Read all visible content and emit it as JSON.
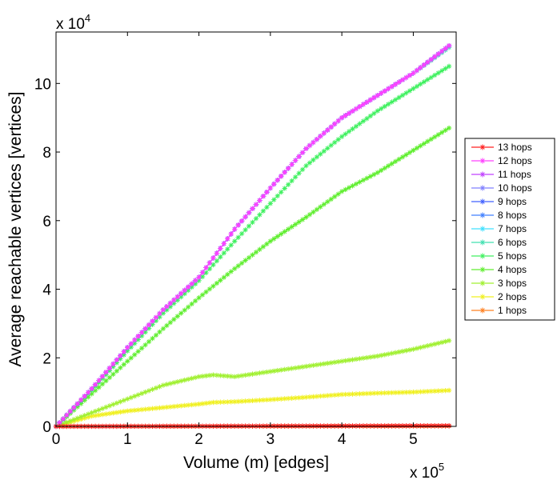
{
  "chart_data": {
    "type": "line",
    "xlabel": "Volume (m) [edges]",
    "ylabel": "Average reachable vertices [vertices]",
    "x_multiplier": {
      "base": "x 10",
      "exp": "5"
    },
    "y_multiplier": {
      "base": "x 10",
      "exp": "4"
    },
    "xlim": [
      0,
      5.6
    ],
    "ylim": [
      0,
      11.5
    ],
    "x_ticks": [
      "0",
      "1",
      "2",
      "3",
      "4",
      "5"
    ],
    "y_ticks": [
      "0",
      "2",
      "4",
      "6",
      "8",
      "10"
    ],
    "legend_position": "right",
    "series": [
      {
        "name": "13 hops",
        "color": "#ff2020",
        "x": [
          0,
          5.5
        ],
        "y": [
          0,
          0.02
        ]
      },
      {
        "name": "12 hops",
        "color": "#ff40ff",
        "x": [
          0,
          0.5,
          1,
          1.5,
          2,
          2.5,
          3,
          3.5,
          4,
          4.5,
          5,
          5.5
        ],
        "y": [
          0,
          1.1,
          2.3,
          3.4,
          4.35,
          5.75,
          6.95,
          8.1,
          9.0,
          9.65,
          10.3,
          11.1
        ]
      },
      {
        "name": "11 hops",
        "color": "#c040ff",
        "x": [
          0,
          0.5,
          1,
          1.5,
          2,
          2.5,
          3,
          3.5,
          4,
          4.5,
          5,
          5.5
        ],
        "y": [
          0,
          1.1,
          2.3,
          3.4,
          4.35,
          5.75,
          6.95,
          8.1,
          9.0,
          9.65,
          10.3,
          11.1
        ]
      },
      {
        "name": "10 hops",
        "color": "#8080ff",
        "x": [
          0,
          0.5,
          1,
          1.5,
          2,
          2.5,
          3,
          3.5,
          4,
          4.5,
          5,
          5.5
        ],
        "y": [
          0,
          1.1,
          2.3,
          3.4,
          4.35,
          5.75,
          6.95,
          8.1,
          9.0,
          9.65,
          10.3,
          11.1
        ]
      },
      {
        "name": "9 hops",
        "color": "#4060ff",
        "x": [
          0,
          0.5,
          1,
          1.5,
          2,
          2.5,
          3,
          3.5,
          4,
          4.5,
          5,
          5.5
        ],
        "y": [
          0,
          1.1,
          2.3,
          3.4,
          4.35,
          5.75,
          6.95,
          8.1,
          9.0,
          9.65,
          10.3,
          11.1
        ]
      },
      {
        "name": "8 hops",
        "color": "#4080ff",
        "x": [
          0,
          0.5,
          1,
          1.5,
          2,
          2.5,
          3,
          3.5,
          4,
          4.5,
          5,
          5.5
        ],
        "y": [
          0,
          1.1,
          2.3,
          3.4,
          4.35,
          5.75,
          6.95,
          8.1,
          9.0,
          9.65,
          10.3,
          11.1
        ]
      },
      {
        "name": "7 hops",
        "color": "#40e0ff",
        "x": [
          0,
          0.5,
          1,
          1.5,
          2,
          2.5,
          3,
          3.5,
          4,
          4.5,
          5,
          5.5
        ],
        "y": [
          0,
          1.1,
          2.3,
          3.4,
          4.35,
          5.75,
          6.95,
          8.1,
          9.0,
          9.65,
          10.3,
          11.1
        ]
      },
      {
        "name": "6 hops",
        "color": "#40e0b0",
        "x": [
          0,
          0.5,
          1,
          1.5,
          2,
          2.5,
          3,
          3.5,
          4,
          4.5,
          5,
          5.5
        ],
        "y": [
          0,
          1.1,
          2.3,
          3.4,
          4.35,
          5.75,
          6.95,
          8.1,
          9.0,
          9.65,
          10.3,
          11.05
        ]
      },
      {
        "name": "5 hops",
        "color": "#40f060",
        "x": [
          0,
          0.5,
          1,
          1.5,
          2,
          2.5,
          3,
          3.5,
          4,
          4.5,
          5,
          5.5
        ],
        "y": [
          0,
          1.05,
          2.2,
          3.3,
          4.25,
          5.4,
          6.5,
          7.6,
          8.45,
          9.2,
          9.85,
          10.5
        ]
      },
      {
        "name": "4 hops",
        "color": "#60ee30",
        "x": [
          0,
          0.5,
          1,
          1.5,
          2,
          2.5,
          3,
          3.5,
          4,
          4.5,
          5,
          5.5
        ],
        "y": [
          0,
          0.95,
          1.9,
          2.85,
          3.75,
          4.6,
          5.4,
          6.1,
          6.85,
          7.4,
          8.05,
          8.7
        ]
      },
      {
        "name": "3 hops",
        "color": "#a0f030",
        "x": [
          0,
          0.5,
          1,
          1.5,
          2,
          2.2,
          2.5,
          3,
          3.5,
          4,
          4.5,
          5,
          5.5
        ],
        "y": [
          0,
          0.4,
          0.8,
          1.2,
          1.45,
          1.5,
          1.45,
          1.6,
          1.75,
          1.9,
          2.05,
          2.25,
          2.5
        ]
      },
      {
        "name": "2 hops",
        "color": "#f0f020",
        "x": [
          0,
          0.5,
          1,
          1.5,
          2,
          2.2,
          2.5,
          3,
          3.5,
          4,
          4.5,
          5,
          5.5
        ],
        "y": [
          0,
          0.3,
          0.45,
          0.55,
          0.65,
          0.7,
          0.72,
          0.78,
          0.85,
          0.93,
          0.97,
          1.0,
          1.05
        ]
      },
      {
        "name": "1 hops",
        "color": "#ff8020",
        "x": [
          0,
          5.5
        ],
        "y": [
          0,
          0.01
        ]
      }
    ]
  }
}
